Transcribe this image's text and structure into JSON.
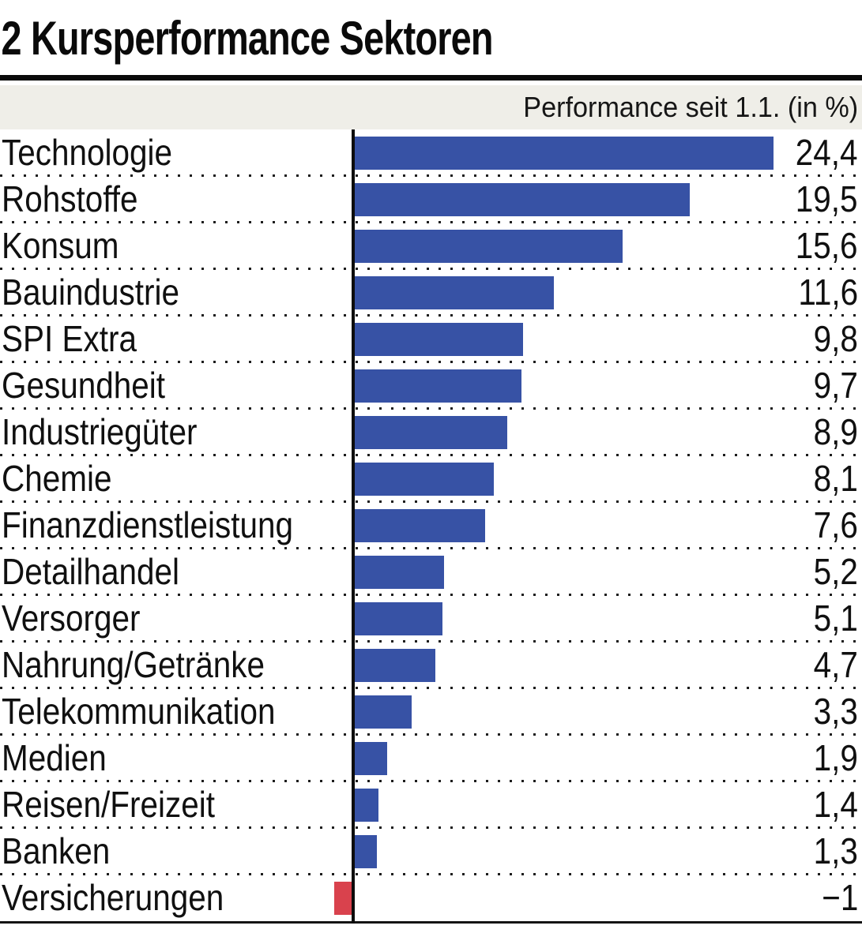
{
  "header": {
    "title": "2 Kursperformance Sektoren"
  },
  "subtitle_band": {
    "label": "Performance seit 1.1. (in %)"
  },
  "chart_data": {
    "type": "bar",
    "orientation": "horizontal",
    "title": "2 Kursperformance Sektoren",
    "subtitle": "Performance seit 1.1. (in %)",
    "xlabel": "Performance seit 1.1. (in %)",
    "ylabel": "",
    "categories": [
      "Technologie",
      "Rohstoffe",
      "Konsum",
      "Bauindustrie",
      "SPI Extra",
      "Gesundheit",
      "Industriegüter",
      "Chemie",
      "Finanzdienstleistung",
      "Detailhandel",
      "Versorger",
      "Nahrung/Getränke",
      "Telekommunikation",
      "Medien",
      "Reisen/Freizeit",
      "Banken",
      "Versicherungen"
    ],
    "values": [
      24.4,
      19.5,
      15.6,
      11.6,
      9.8,
      9.7,
      8.9,
      8.1,
      7.6,
      5.2,
      5.1,
      4.7,
      3.3,
      1.9,
      1.4,
      1.3,
      -1
    ],
    "value_labels": [
      "24,4",
      "19,5",
      "15,6",
      "11,6",
      "9,8",
      "9,7",
      "8,9",
      "8,1",
      "7,6",
      "5,2",
      "5,1",
      "4,7",
      "3,3",
      "1,9",
      "1,4",
      "1,3",
      "−1"
    ],
    "baseline": 0,
    "xlim": [
      -1.5,
      29.5
    ],
    "grid": "dotted horizontal row separators",
    "legend": "none",
    "positive_color": "#3752a5",
    "negative_color": "#d9424d"
  },
  "colors": {
    "bar_positive": "#3752a5",
    "bar_negative": "#d9424d",
    "band_background": "#efeee8",
    "axis_line": "#0c0c0c",
    "bottom_rule": "#141414",
    "text": "#101010"
  }
}
